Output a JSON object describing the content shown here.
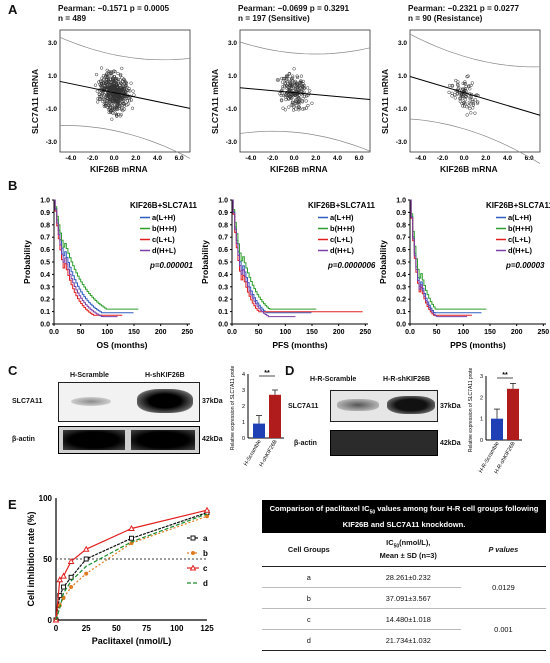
{
  "panels": {
    "A": "A",
    "B": "B",
    "C": "C",
    "D": "D",
    "E": "E"
  },
  "panelA": {
    "plots": [
      {
        "title": "Pearman: −0.1571 p = 0.0005",
        "n": "n = 489",
        "yl": "SLC7A11 mRNA",
        "xl": "KIF26B mRNA",
        "xticks": [
          "-4.0",
          "-2.0",
          "0.0",
          "2.0",
          "4.0",
          "6.0"
        ],
        "yticks": [
          "3.0",
          "1.0",
          "-1.0",
          "-3.0"
        ]
      },
      {
        "title": "Pearman: −0.0699 p = 0.3291",
        "n": "n = 197 (Sensitive)",
        "yl": "SLC7A11 mRNA",
        "xl": "KIF26B mRNA",
        "xticks": [
          "-4.0",
          "-2.0",
          "0.0",
          "2.0",
          "4.0",
          "6.0"
        ],
        "yticks": [
          "3.0",
          "1.0",
          "-1.0",
          "-3.0"
        ]
      },
      {
        "title": "Pearman: −0.2321 p = 0.0277",
        "n": "n = 90 (Resistance)",
        "yl": "SLC7A11 mRNA",
        "xl": "KIF26B mRNA",
        "xticks": [
          "-4.0",
          "-2.0",
          "0.0",
          "2.0",
          "4.0",
          "6.0"
        ],
        "yticks": [
          "3.0",
          "1.0",
          "-1.0",
          "-3.0"
        ]
      }
    ]
  },
  "panelB": {
    "legend_title": "KIF26B+SLC7A11",
    "series": [
      {
        "name": "a(L+H)",
        "color": "#2e5fbf"
      },
      {
        "name": "b(H+H)",
        "color": "#2e9e2e"
      },
      {
        "name": "c(L+L)",
        "color": "#e02020"
      },
      {
        "name": "d(H+L)",
        "color": "#7a3fa8"
      }
    ],
    "ylabel": "Probability",
    "yticks": [
      "1.0",
      "0.9",
      "0.8",
      "0.7",
      "0.6",
      "0.5",
      "0.4",
      "0.3",
      "0.2",
      "0.1",
      "0.0"
    ],
    "xticks": [
      "0.0",
      "50",
      "100",
      "150",
      "200",
      "250"
    ],
    "plots": [
      {
        "xlabel": "OS (months)",
        "p": "p=0.000001"
      },
      {
        "xlabel": "PFS (months)",
        "p": "p=0.0000006"
      },
      {
        "xlabel": "PPS (months)",
        "p": "p=0.00003"
      }
    ]
  },
  "panelC": {
    "cols": [
      "H-Scramble",
      "H-shKIF26B"
    ],
    "rows": [
      {
        "name": "SLC7A11",
        "kda": "37kDa"
      },
      {
        "name": "β-actin",
        "kda": "42kDa"
      }
    ],
    "chart_data": {
      "type": "bar",
      "categories": [
        "H-Scramble",
        "H-shKIF26B"
      ],
      "values": [
        0.9,
        2.7
      ],
      "errors": [
        0.5,
        0.3
      ],
      "ylabel": "Relative expression of SLC7A11 protein",
      "ylim": [
        0,
        4
      ],
      "yticks": [
        "4",
        "3",
        "2",
        "1",
        "0"
      ],
      "sig": "**",
      "colors": [
        "#1f3fb5",
        "#b01c1c"
      ]
    }
  },
  "panelD": {
    "cols": [
      "H-R-Scramble",
      "H-R-shKIF26B"
    ],
    "rows": [
      {
        "name": "SLC7A11",
        "kda": "37kDa"
      },
      {
        "name": "β-actin",
        "kda": "42kDa"
      }
    ],
    "chart_data": {
      "type": "bar",
      "categories": [
        "H-R-Scramble",
        "H-R-shKIF26B"
      ],
      "values": [
        1.0,
        2.4
      ],
      "errors": [
        0.45,
        0.25
      ],
      "ylabel": "Relative expression of SLC7A11 protein",
      "ylim": [
        0,
        3
      ],
      "yticks": [
        "3",
        "2",
        "1",
        "0"
      ],
      "sig": "**",
      "colors": [
        "#1f3fb5",
        "#b01c1c"
      ]
    }
  },
  "panelE": {
    "chart_data": {
      "type": "line",
      "x": [
        0,
        3.125,
        6.25,
        12.5,
        25,
        62.5,
        125
      ],
      "series": [
        {
          "name": "a",
          "color": "#111111",
          "values": [
            0,
            20,
            27,
            35,
            50,
            67,
            88
          ]
        },
        {
          "name": "b",
          "color": "#e07b20",
          "values": [
            0,
            12,
            18,
            27,
            38,
            63,
            85
          ]
        },
        {
          "name": "c",
          "color": "#e02020",
          "values": [
            0,
            33,
            36,
            48,
            58,
            75,
            90
          ]
        },
        {
          "name": "d",
          "color": "#1a8a2a",
          "values": [
            0,
            10,
            22,
            32,
            44,
            64,
            87
          ]
        }
      ],
      "xlabel": "Paclitaxel (nmol/L)",
      "ylabel": "Cell inhibition rate (%)",
      "xlim": [
        0,
        125
      ],
      "ylim": [
        0,
        100
      ],
      "xticks": [
        "0",
        "25",
        "50",
        "75",
        "100",
        "125"
      ],
      "yticks": [
        "100",
        "50",
        "0"
      ]
    },
    "table": {
      "title_l1": "Comparison of paclitaxel IC",
      "title_sub": "50",
      "title_l1b": " values among four H-R cell groups following",
      "title_l2": "KIF26B and SLC7A11 knockdown.",
      "h1": "Cell Groups",
      "h2a": "IC",
      "h2sub": "50",
      "h2b": "(nmol/L),",
      "h2c": "Mean ± SD (n=3)",
      "h3": "P values",
      "rows": [
        {
          "g": "a",
          "v": "28.261±0.232"
        },
        {
          "g": "b",
          "v": "37.091±3.567"
        },
        {
          "g": "c",
          "v": "14.480±1.018"
        },
        {
          "g": "d",
          "v": "21.734±1.032"
        }
      ],
      "p1": "0.0129",
      "p2": "0.001"
    }
  }
}
